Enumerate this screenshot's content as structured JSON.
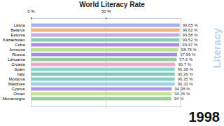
{
  "chart_data": {
    "type": "bar",
    "title": "World Literacy Rate",
    "orientation": "horizontal",
    "categories": [
      "Latvia",
      "Belarus",
      "Estonia",
      "Kazakhstan",
      "Cuba",
      "Armenia",
      "Russia",
      "Lithuania",
      "Croatia",
      "Spain",
      "Italy",
      "Moldova",
      "Maldives",
      "Cyprus",
      "Oman",
      "Montenegro"
    ],
    "values": [
      99.65,
      99.62,
      99.58,
      99.52,
      99.47,
      98.75,
      97.99,
      97.6,
      96.7,
      96.38,
      96.36,
      96.35,
      96.33,
      94.38,
      94.26,
      94
    ],
    "value_labels": [
      "99.65 %",
      "99.62 %",
      "99.58 %",
      "99.52 %",
      "99.47 %",
      "98.75 %",
      "97.99 %",
      "97.6 %",
      "96.7 %",
      "96.38 %",
      "96.36 %",
      "96.35 %",
      "96.33 %",
      "94.38 %",
      "94.26 %",
      "94 %"
    ],
    "colors": [
      "#9fb0ea",
      "#f2b37a",
      "#c7a6e6",
      "#7fcfb4",
      "#b38ad9",
      "#b9e08c",
      "#a58be0",
      "#8fd19e",
      "#f0a8c8",
      "#8fd3c8",
      "#7cc9c0",
      "#86cfc2",
      "#9fd0ee",
      "#b496e0",
      "#c4e29a",
      "#93d48c"
    ],
    "xlim": [
      0,
      100
    ],
    "xticks": [
      {
        "value": 0,
        "label": "0 %"
      },
      {
        "value": 50,
        "label": "50 %"
      }
    ],
    "grid": true,
    "data_labels": true,
    "annotations": [
      "1998",
      "Literacy"
    ]
  }
}
